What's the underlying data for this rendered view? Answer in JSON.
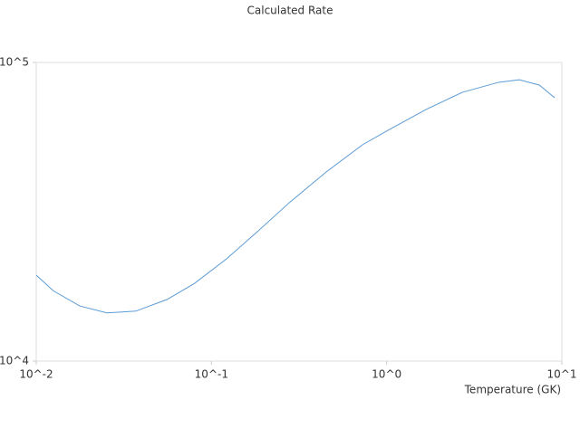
{
  "chart_data": {
    "type": "line",
    "title": "Calculated Rate",
    "x_label": "Temperature (GK)",
    "log_x": true,
    "log_y": true,
    "xlim": [
      0.01,
      10
    ],
    "ylim": [
      10000,
      100000
    ],
    "xticks": [
      {
        "value": 0.01,
        "label": "10^-2"
      },
      {
        "value": 0.1,
        "label": "10^-1"
      },
      {
        "value": 1,
        "label": "10^0"
      },
      {
        "value": 10,
        "label": "10^1"
      }
    ],
    "yticks": [
      {
        "value": 10000,
        "label": "10^4"
      },
      {
        "value": 100000,
        "label": "10^5"
      }
    ],
    "series": [
      {
        "color": "#5b9bd5",
        "x": [
          0.01,
          0.0125,
          0.0177,
          0.0253,
          0.037,
          0.056,
          0.08,
          0.122,
          0.185,
          0.281,
          0.452,
          0.728,
          1.04,
          1.68,
          2.7,
          4.35,
          5.71,
          7.43,
          9.1
        ],
        "values": [
          19400,
          17200,
          15300,
          14500,
          14700,
          16100,
          18200,
          22000,
          27300,
          34100,
          43000,
          53000,
          59700,
          69600,
          79400,
          85800,
          87500,
          84000,
          76200
        ]
      }
    ]
  }
}
